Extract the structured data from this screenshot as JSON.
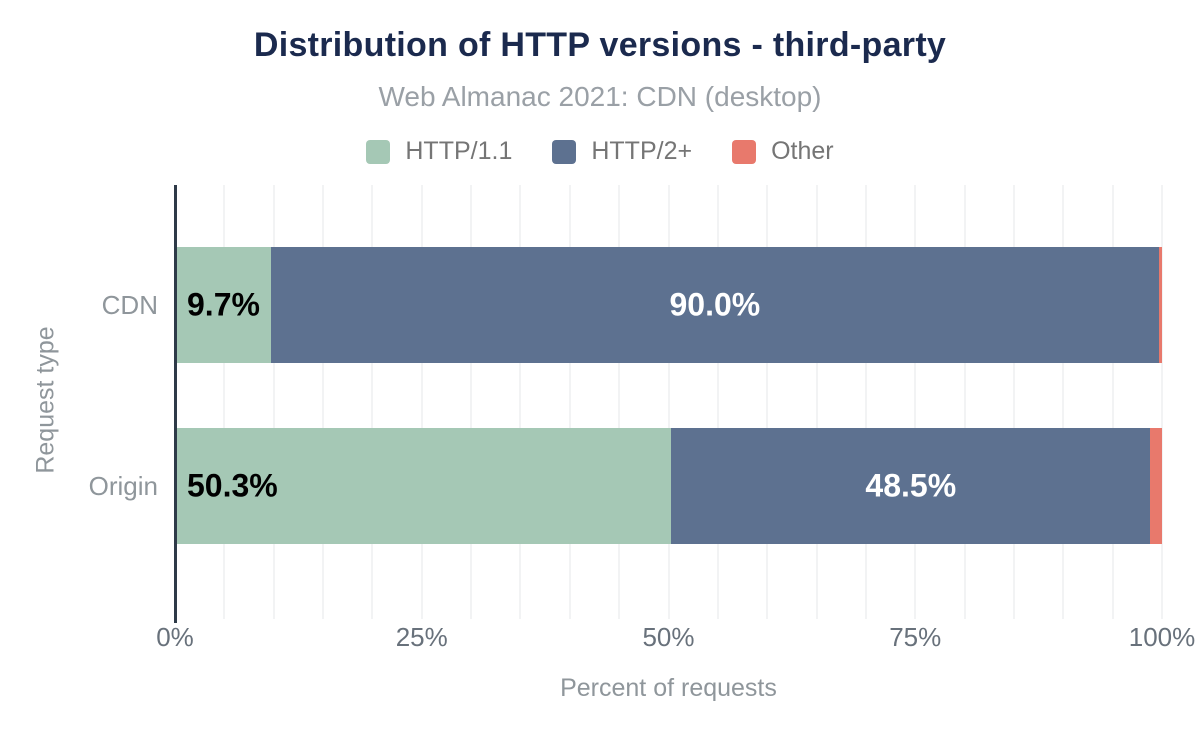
{
  "title": "Distribution of HTTP versions - third-party",
  "subtitle": "Web Almanac 2021: CDN (desktop)",
  "colors": {
    "title": "#1b2a4e",
    "subtitle": "#9aa0a6",
    "axis_line": "#2e3a48",
    "gridline": "#f2f3f4",
    "tick_label": "#68717b",
    "axis_title": "#8f969b",
    "http11_green": "#a5c8b5",
    "http2_blue": "#5d7190",
    "other_salmon": "#e8796c"
  },
  "chart_data": {
    "type": "bar",
    "orientation": "horizontal",
    "stacked": true,
    "title": "Distribution of HTTP versions - third-party",
    "subtitle": "Web Almanac 2021: CDN (desktop)",
    "categories": [
      "CDN",
      "Origin"
    ],
    "series": [
      {
        "name": "HTTP/1.1",
        "color": "#a5c8b5",
        "values": [
          9.7,
          50.3
        ],
        "labels": [
          "9.7%",
          "50.3%"
        ],
        "label_color": "#000000"
      },
      {
        "name": "HTTP/2+",
        "color": "#5d7190",
        "values": [
          90.0,
          48.5
        ],
        "labels": [
          "90.0%",
          "48.5%"
        ],
        "label_color": "#ffffff"
      },
      {
        "name": "Other",
        "color": "#e8796c",
        "values": [
          0.3,
          1.2
        ],
        "labels": [
          "",
          ""
        ],
        "label_color": "#ffffff"
      }
    ],
    "xlabel": "Percent of requests",
    "ylabel": "Request type",
    "x_ticks": [
      "0%",
      "25%",
      "50%",
      "75%",
      "100%"
    ],
    "x_tick_values": [
      0,
      25,
      50,
      75,
      100
    ],
    "xlim": [
      0,
      100
    ],
    "gridline_step": 5,
    "grid": true,
    "legend_position": "top"
  }
}
